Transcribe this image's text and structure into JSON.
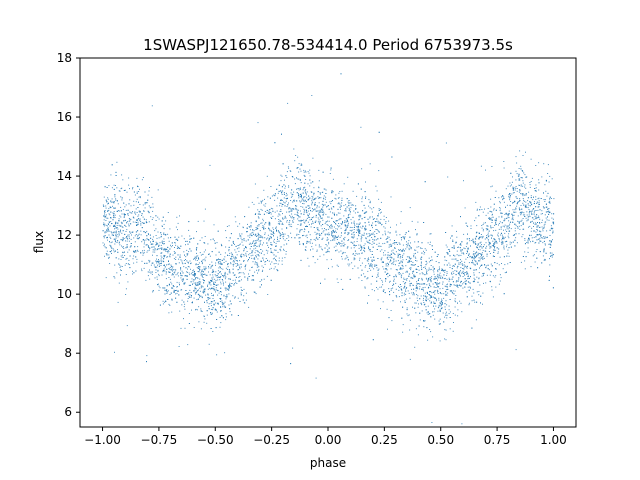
{
  "chart_data": {
    "type": "scatter",
    "title": "1SWASPJ121650.78-534414.0 Period 6753973.5s",
    "xlabel": "phase",
    "ylabel": "flux",
    "xlim": [
      -1.1,
      1.1
    ],
    "ylim": [
      5.5,
      18
    ],
    "x_ticks": [
      -1.0,
      -0.75,
      -0.5,
      -0.25,
      0.0,
      0.25,
      0.5,
      0.75,
      1.0
    ],
    "x_tick_labels": [
      "−1.00",
      "−0.75",
      "−0.50",
      "−0.25",
      "0.00",
      "0.25",
      "0.50",
      "0.75",
      "1.00"
    ],
    "y_ticks": [
      6,
      8,
      10,
      12,
      14,
      16,
      18
    ],
    "y_tick_labels": [
      "6",
      "8",
      "10",
      "12",
      "14",
      "16",
      "18"
    ],
    "grid": false,
    "point_color": "#1f77b4",
    "series": [
      {
        "x": [
          -1.0,
          -0.95,
          -0.9,
          -0.85,
          -0.8,
          -0.75,
          -0.7,
          -0.65,
          -0.6,
          -0.55,
          -0.5,
          -0.45,
          -0.4,
          -0.35,
          -0.3,
          -0.25,
          -0.2,
          -0.15,
          -0.1,
          -0.05,
          0.0,
          0.05,
          0.1,
          0.15,
          0.2,
          0.25,
          0.3,
          0.35,
          0.4,
          0.45,
          0.5,
          0.55,
          0.6,
          0.65,
          0.7,
          0.75,
          0.8,
          0.85,
          0.9,
          0.95,
          1.0
        ],
        "y": [
          12.6,
          12.3,
          12.1,
          12.4,
          11.9,
          11.3,
          11.0,
          10.8,
          10.6,
          10.5,
          10.3,
          10.5,
          11.1,
          11.4,
          11.8,
          12.0,
          12.6,
          13.1,
          12.9,
          12.5,
          12.4,
          12.3,
          12.1,
          11.9,
          11.7,
          11.4,
          11.1,
          10.9,
          10.6,
          10.4,
          10.2,
          10.6,
          11.0,
          11.2,
          11.7,
          12.0,
          12.6,
          13.0,
          12.7,
          12.4,
          12.3
        ],
        "spread": 0.75
      }
    ]
  }
}
